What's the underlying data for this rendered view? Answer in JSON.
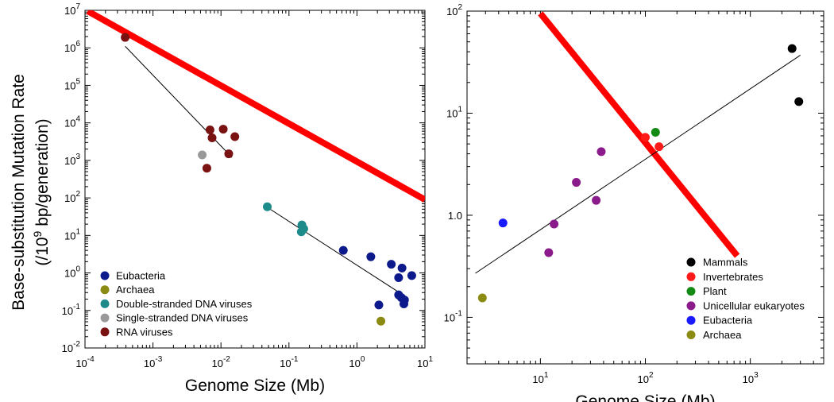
{
  "figure": {
    "ylabel_line1": "Base-substitution Mutation Rate",
    "ylabel_line2_pre": "(/10",
    "ylabel_line2_sup": "9",
    "ylabel_line2_post": " bp/generation)"
  },
  "chart_data": [
    {
      "type": "scatter",
      "xlabel": "Genome Size (Mb)",
      "xscale": "log",
      "yscale": "log",
      "xlim": [
        0.0001,
        10
      ],
      "ylim": [
        0.01,
        10000000
      ],
      "x_ticks": [
        {
          "base": "10",
          "exp": "-4"
        },
        {
          "base": "10",
          "exp": "-3"
        },
        {
          "base": "10",
          "exp": "-2"
        },
        {
          "base": "10",
          "exp": "-1"
        },
        {
          "base": "10",
          "exp": "0"
        },
        {
          "base": "10",
          "exp": "1"
        }
      ],
      "y_ticks": [
        {
          "base": "10",
          "exp": "-2"
        },
        {
          "base": "10",
          "exp": "-1"
        },
        {
          "base": "10",
          "exp": "0"
        },
        {
          "base": "10",
          "exp": "1"
        },
        {
          "base": "10",
          "exp": "2"
        },
        {
          "base": "10",
          "exp": "3"
        },
        {
          "base": "10",
          "exp": "4"
        },
        {
          "base": "10",
          "exp": "5"
        },
        {
          "base": "10",
          "exp": "6"
        },
        {
          "base": "10",
          "exp": "7"
        }
      ],
      "grid": false,
      "legend_position": "bottom-left",
      "series": [
        {
          "name": "Eubacteria",
          "color": "#0d1a8c",
          "points": [
            [
              0.63,
              4.0
            ],
            [
              1.6,
              2.7
            ],
            [
              3.2,
              1.7
            ],
            [
              4.6,
              1.35
            ],
            [
              6.4,
              0.85
            ],
            [
              4.1,
              0.75
            ],
            [
              2.1,
              0.14
            ],
            [
              4.1,
              0.26
            ],
            [
              4.5,
              0.22
            ],
            [
              5.0,
              0.19
            ],
            [
              4.9,
              0.15
            ]
          ]
        },
        {
          "name": "Archaea",
          "color": "#8b8a12",
          "points": [
            [
              2.25,
              0.052
            ]
          ]
        },
        {
          "name": "Double-stranded DNA viruses",
          "color": "#1e8b8b",
          "points": [
            [
              0.048,
              58
            ],
            [
              0.155,
              19
            ],
            [
              0.165,
              15
            ],
            [
              0.152,
              12.5
            ]
          ]
        },
        {
          "name": "Single-stranded DNA viruses",
          "color": "#999999",
          "points": [
            [
              0.0053,
              1400
            ]
          ]
        },
        {
          "name": "RNA viruses",
          "color": "#7a1212",
          "points": [
            [
              0.00039,
              1900000
            ],
            [
              0.0069,
              6500
            ],
            [
              0.0074,
              4000
            ],
            [
              0.0108,
              6800
            ],
            [
              0.016,
              4300
            ],
            [
              0.013,
              1500
            ],
            [
              0.0062,
              620
            ]
          ]
        }
      ],
      "trend_lines": [
        {
          "color": "#ff0000",
          "from": [
            0.00011,
            9500000
          ],
          "to": [
            10,
            90
          ]
        },
        {
          "color": "#000000",
          "from": [
            0.00039,
            1100000
          ],
          "to": [
            0.0145,
            1200
          ]
        },
        {
          "color": "#000000",
          "from": [
            0.048,
            56
          ],
          "to": [
            5.7,
            0.21
          ]
        }
      ]
    },
    {
      "type": "scatter",
      "xlabel": "Genome Size (Mb)",
      "xscale": "log",
      "yscale": "log",
      "xlim": [
        2,
        5000
      ],
      "ylim": [
        0.035,
        100
      ],
      "x_ticks": [
        {
          "base": "10",
          "exp": "1"
        },
        {
          "base": "10",
          "exp": "2"
        },
        {
          "base": "10",
          "exp": "3"
        }
      ],
      "y_ticks": [
        {
          "base": "10",
          "exp": "-1"
        },
        {
          "base": "10",
          "exp": "0"
        },
        {
          "base": "10",
          "exp": "1"
        },
        {
          "base": "10",
          "exp": "2"
        }
      ],
      "y_tick_labels": [
        "10",
        "1.0",
        "10",
        "10"
      ],
      "grid": false,
      "legend_position": "bottom-right",
      "series": [
        {
          "name": "Mammals",
          "color": "#000000",
          "points": [
            [
              2500,
              43
            ],
            [
              2900,
              13
            ]
          ]
        },
        {
          "name": "Invertebrates",
          "color": "#ff1a1a",
          "points": [
            [
              100,
              5.8
            ],
            [
              135,
              4.7
            ]
          ]
        },
        {
          "name": "Plant",
          "color": "#138a13",
          "points": [
            [
              125,
              6.5
            ]
          ]
        },
        {
          "name": "Unicellular eukaryotes",
          "color": "#8b1a8b",
          "points": [
            [
              38,
              4.2
            ],
            [
              22,
              2.1
            ],
            [
              34,
              1.4
            ],
            [
              13.5,
              0.82
            ],
            [
              12,
              0.43
            ]
          ]
        },
        {
          "name": "Eubacteria",
          "color": "#1a1aff",
          "points": [
            [
              4.4,
              0.84
            ]
          ]
        },
        {
          "name": "Archaea",
          "color": "#8b8a12",
          "points": [
            [
              2.8,
              0.155
            ]
          ]
        }
      ],
      "trend_lines": [
        {
          "color": "#ff0000",
          "from": [
            10,
            95
          ],
          "to": [
            750,
            0.4
          ]
        },
        {
          "color": "#000000",
          "from": [
            2.4,
            0.27
          ],
          "to": [
            3000,
            37
          ]
        }
      ]
    }
  ]
}
